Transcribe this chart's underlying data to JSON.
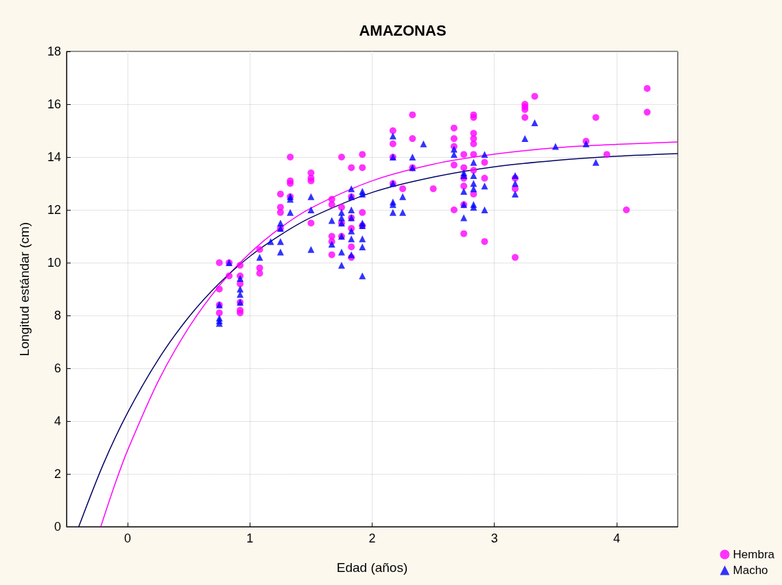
{
  "chart_data": {
    "type": "scatter",
    "title": "AMAZONAS",
    "xlabel": "Edad (años)",
    "ylabel": "Longitud estándar (cm)",
    "xlim": [
      -0.5,
      4.5
    ],
    "xticks": [
      0,
      1,
      2,
      3,
      4
    ],
    "ylim": [
      0,
      18
    ],
    "yticks": [
      0,
      2,
      4,
      6,
      8,
      10,
      12,
      14,
      16,
      18
    ],
    "grid": true,
    "legend": "bottom right",
    "series": [
      {
        "name": "Hembra",
        "marker": "circle",
        "color": "#ff00ff",
        "x": [
          0.75,
          0.75,
          0.75,
          0.75,
          0.83,
          0.83,
          0.92,
          0.92,
          0.92,
          0.92,
          0.92,
          0.92,
          1.08,
          1.08,
          1.08,
          1.25,
          1.25,
          1.25,
          1.25,
          1.33,
          1.33,
          1.33,
          1.33,
          1.5,
          1.5,
          1.5,
          1.5,
          1.67,
          1.67,
          1.67,
          1.67,
          1.67,
          1.75,
          1.75,
          1.75,
          1.75,
          1.83,
          1.83,
          1.83,
          1.83,
          1.83,
          1.83,
          1.92,
          1.92,
          1.92,
          1.92,
          2.17,
          2.17,
          2.17,
          2.17,
          2.25,
          2.33,
          2.33,
          2.33,
          2.5,
          2.67,
          2.67,
          2.67,
          2.67,
          2.67,
          2.75,
          2.75,
          2.75,
          2.75,
          2.75,
          2.75,
          2.83,
          2.83,
          2.83,
          2.83,
          2.83,
          2.83,
          2.83,
          2.83,
          2.92,
          2.92,
          2.92,
          3.17,
          3.17,
          3.17,
          3.25,
          3.25,
          3.25,
          3.25,
          3.33,
          3.75,
          3.83,
          3.92,
          4.08,
          4.25,
          4.25
        ],
        "values": [
          10.0,
          9.0,
          8.4,
          8.1,
          10.0,
          9.5,
          9.9,
          9.5,
          9.2,
          8.5,
          8.2,
          8.1,
          10.5,
          9.8,
          9.6,
          12.6,
          12.1,
          11.9,
          11.3,
          14.0,
          13.1,
          13.0,
          12.5,
          13.4,
          13.2,
          13.1,
          11.5,
          12.4,
          12.2,
          11.0,
          10.8,
          10.3,
          14.0,
          12.1,
          11.5,
          11.0,
          13.6,
          12.5,
          11.7,
          11.3,
          10.6,
          10.2,
          14.1,
          13.6,
          11.9,
          11.4,
          15.0,
          14.5,
          14.0,
          13.0,
          12.8,
          15.6,
          14.7,
          13.6,
          12.8,
          15.1,
          14.7,
          14.4,
          13.7,
          12.0,
          14.1,
          13.6,
          13.2,
          12.9,
          12.2,
          11.1,
          15.6,
          15.5,
          14.9,
          14.7,
          14.5,
          14.1,
          13.5,
          12.6,
          13.8,
          13.2,
          10.8,
          13.2,
          12.8,
          10.2,
          16.0,
          15.9,
          15.8,
          15.5,
          16.3,
          14.6,
          15.5,
          14.1,
          12.0,
          16.6,
          15.7
        ]
      },
      {
        "name": "Macho",
        "marker": "triangle",
        "color": "#0000ff",
        "x": [
          0.75,
          0.75,
          0.75,
          0.75,
          0.83,
          0.92,
          0.92,
          0.92,
          0.92,
          1.08,
          1.17,
          1.25,
          1.25,
          1.25,
          1.25,
          1.33,
          1.33,
          1.33,
          1.5,
          1.5,
          1.5,
          1.67,
          1.67,
          1.75,
          1.75,
          1.75,
          1.75,
          1.75,
          1.75,
          1.83,
          1.83,
          1.83,
          1.83,
          1.83,
          1.83,
          1.83,
          1.92,
          1.92,
          1.92,
          1.92,
          1.92,
          1.92,
          1.92,
          2.17,
          2.17,
          2.17,
          2.17,
          2.17,
          2.17,
          2.25,
          2.25,
          2.33,
          2.33,
          2.42,
          2.67,
          2.67,
          2.75,
          2.75,
          2.75,
          2.75,
          2.75,
          2.83,
          2.83,
          2.83,
          2.83,
          2.83,
          2.83,
          2.92,
          2.92,
          2.92,
          3.17,
          3.17,
          3.17,
          3.25,
          3.33,
          3.5,
          3.75,
          3.83
        ],
        "values": [
          8.4,
          7.9,
          7.8,
          7.7,
          10.0,
          9.4,
          9.0,
          8.8,
          8.5,
          10.2,
          10.8,
          11.5,
          11.3,
          10.8,
          10.4,
          12.5,
          12.4,
          11.9,
          12.5,
          12.0,
          10.5,
          11.6,
          10.7,
          11.9,
          11.7,
          11.5,
          11.0,
          10.4,
          9.9,
          12.8,
          12.5,
          12.0,
          11.7,
          11.2,
          10.9,
          10.3,
          12.7,
          12.6,
          11.5,
          11.4,
          10.9,
          10.6,
          9.5,
          14.8,
          14.0,
          13.0,
          12.3,
          12.2,
          11.9,
          12.5,
          11.9,
          14.0,
          13.6,
          14.5,
          14.3,
          14.1,
          13.4,
          13.3,
          12.7,
          12.2,
          11.7,
          13.8,
          13.3,
          13.0,
          12.8,
          12.2,
          12.1,
          14.1,
          12.9,
          12.0,
          13.3,
          13.0,
          12.6,
          14.7,
          15.3,
          14.4,
          14.5,
          13.8
        ]
      },
      {
        "type": "line",
        "marker": "none",
        "line_style": "solid",
        "color": "#ff00ff",
        "x": [
          -0.22,
          -0.1,
          0,
          0.25,
          0.5,
          0.75,
          1,
          1.25,
          1.5,
          2,
          2.5,
          3,
          3.5,
          4,
          4.5
        ],
        "values": [
          0,
          1.66,
          2.9,
          5.51,
          7.54,
          9.13,
          10.36,
          11.32,
          12.07,
          13.1,
          13.73,
          14.11,
          14.35,
          14.48,
          14.57
        ]
      },
      {
        "type": "line",
        "marker": "none",
        "line_style": "solid",
        "color": "#000066",
        "x": [
          -0.4,
          -0.2,
          0,
          0.25,
          0.5,
          0.75,
          1,
          1.25,
          1.5,
          2,
          2.5,
          3,
          3.5,
          4,
          4.5
        ],
        "values": [
          0,
          2.36,
          4.32,
          6.33,
          7.94,
          9.22,
          10.24,
          11.05,
          11.71,
          12.66,
          13.24,
          13.63,
          13.87,
          14.03,
          14.13
        ]
      }
    ]
  }
}
